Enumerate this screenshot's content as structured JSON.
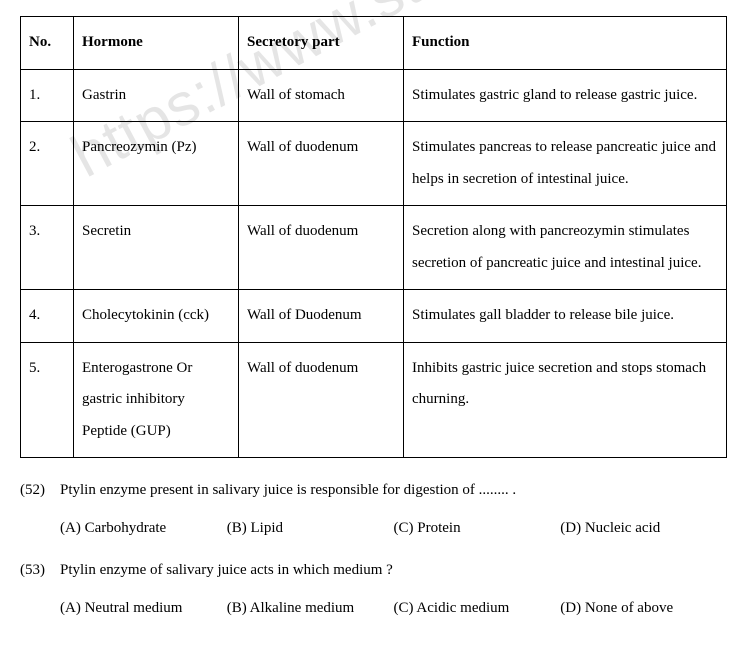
{
  "watermark": "https://www.studies",
  "table": {
    "headers": {
      "no": "No.",
      "hormone": "Hormone",
      "secretory": "Secretory part",
      "function": "Function"
    },
    "rows": [
      {
        "no": "1.",
        "hormone": "Gastrin",
        "secretory": "Wall of stomach",
        "function": "Stimulates gastric gland to release gastric juice."
      },
      {
        "no": "2.",
        "hormone": "Pancreozymin (Pz)",
        "secretory": "Wall of duodenum",
        "function": "Stimulates pancreas to release pancreatic juice and helps in secretion of intestinal juice."
      },
      {
        "no": "3.",
        "hormone": "Secretin",
        "secretory": "Wall of duodenum",
        "function": "Secretion along with pancreozymin stimulates secretion of pancreatic juice and intestinal juice."
      },
      {
        "no": "4.",
        "hormone": "Cholecytokinin (cck)",
        "secretory": "Wall of Duodenum",
        "function": "Stimulates gall bladder to release bile juice."
      },
      {
        "no": "5.",
        "hormone": "Enterogastrone Or gastric inhibitory Peptide (GUP)",
        "secretory": "Wall of duodenum",
        "function": "Inhibits gastric juice secretion and stops stomach churning."
      }
    ]
  },
  "questions": [
    {
      "num": "(52)",
      "text": "Ptylin enzyme present in salivary juice is responsible for digestion of ........ .",
      "options": {
        "a": "(A) Carbohydrate",
        "b": "(B) Lipid",
        "c": "(C) Protein",
        "d": "(D) Nucleic acid"
      }
    },
    {
      "num": "(53)",
      "text": "Ptylin enzyme of salivary juice acts in which medium ?",
      "options": {
        "a": "(A) Neutral medium",
        "b": "(B) Alkaline medium",
        "c": "(C) Acidic medium",
        "d": "(D) None of above"
      }
    }
  ]
}
